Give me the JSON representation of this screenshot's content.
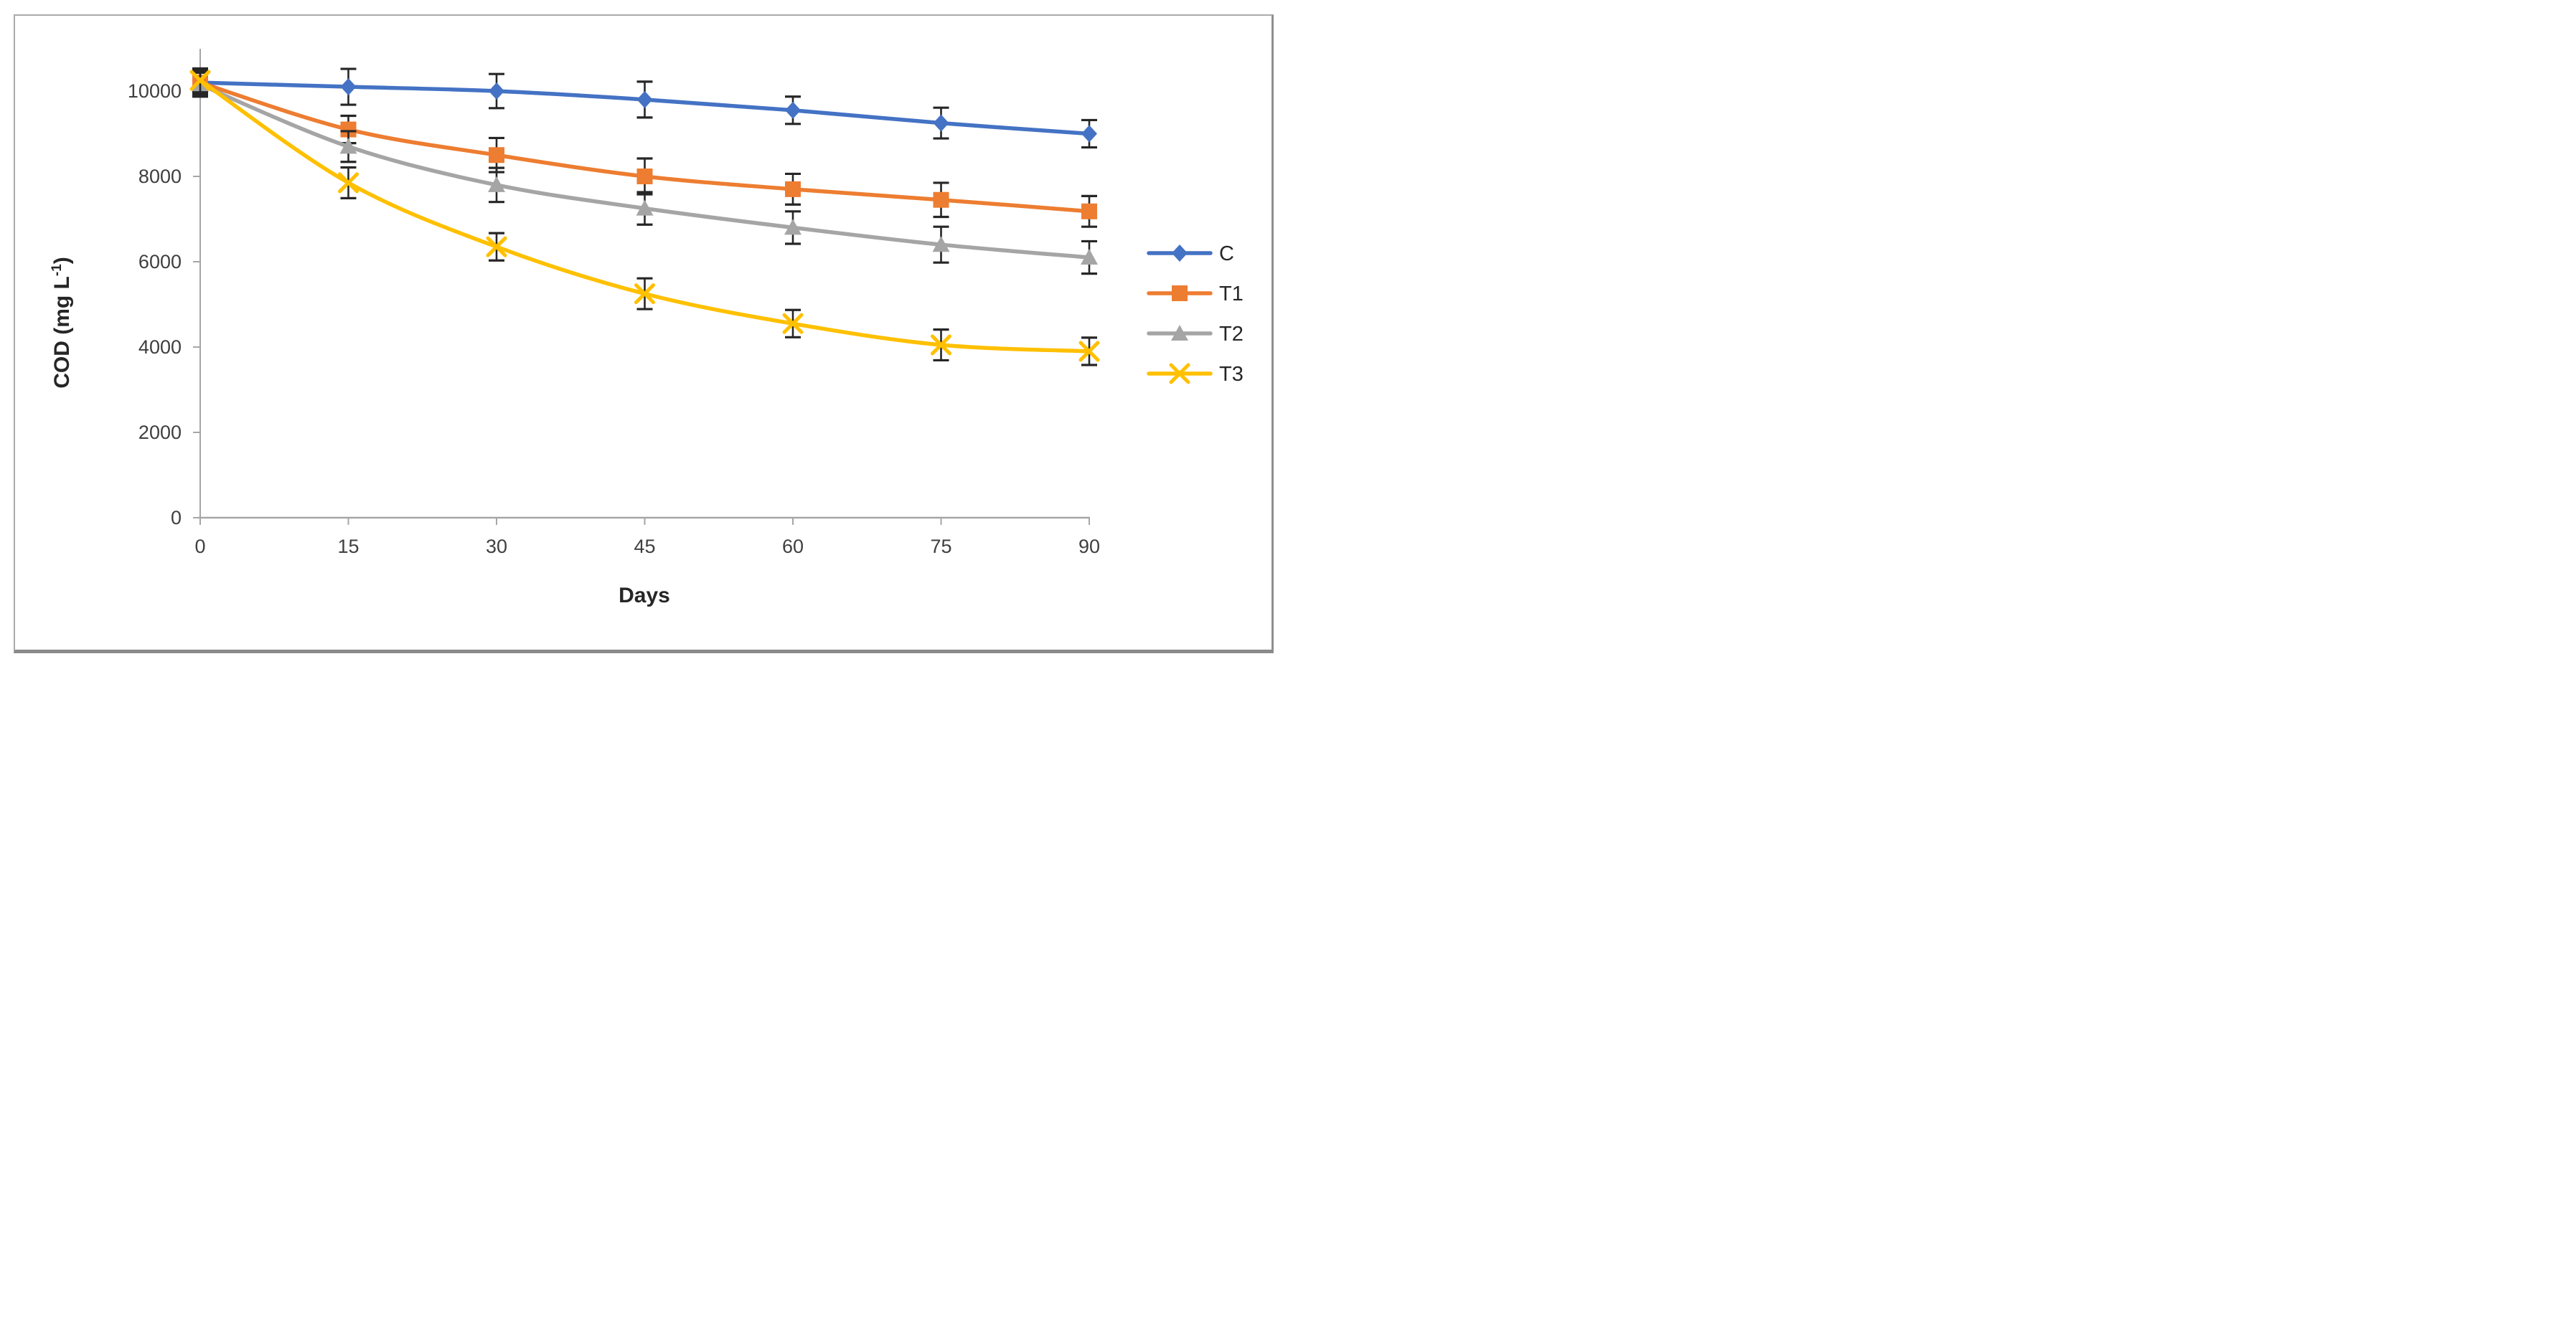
{
  "figure": {
    "background": "#ffffff",
    "border_color": "#aaaaaa",
    "shadow_color": "#8a8a8a"
  },
  "chart_data": {
    "type": "line",
    "title": "",
    "xlabel": "Days",
    "ylabel": "COD (mg L-1)",
    "ylabel_parts": {
      "prefix": "COD (mg L",
      "superscript": "-1",
      "suffix": ")"
    },
    "x": [
      0,
      15,
      30,
      45,
      60,
      75,
      90
    ],
    "x_tick_labels": [
      "0",
      "15",
      "30",
      "45",
      "60",
      "75",
      "90"
    ],
    "y_ticks": [
      0,
      2000,
      4000,
      6000,
      8000,
      10000
    ],
    "y_tick_labels": [
      "0",
      "2000",
      "4000",
      "6000",
      "8000",
      "10000"
    ],
    "ylim": [
      0,
      11000
    ],
    "xlim": [
      0,
      90
    ],
    "grid": false,
    "smooth_lines": true,
    "legend_position": "right",
    "axis_color": "#a6a6a6",
    "tick_text_color": "#3f3f3f",
    "title_text_color": "#262626",
    "error_bar_color": "#262626",
    "series": [
      {
        "name": "C",
        "color": "#4472C4",
        "marker": "diamond",
        "values": [
          10200,
          10100,
          10000,
          9800,
          9550,
          9250,
          9000
        ],
        "errors": [
          280,
          420,
          400,
          420,
          320,
          360,
          320
        ]
      },
      {
        "name": "T1",
        "color": "#ED7D31",
        "marker": "square",
        "values": [
          10200,
          9100,
          8500,
          8000,
          7700,
          7450,
          7180
        ],
        "errors": [
          280,
          320,
          400,
          420,
          360,
          400,
          360
        ]
      },
      {
        "name": "T2",
        "color": "#A5A5A5",
        "marker": "triangle",
        "values": [
          10150,
          8700,
          7800,
          7250,
          6800,
          6400,
          6100
        ],
        "errors": [
          280,
          360,
          400,
          380,
          380,
          420,
          380
        ]
      },
      {
        "name": "T3",
        "color": "#FFC000",
        "marker": "x",
        "values": [
          10250,
          7850,
          6350,
          5250,
          4550,
          4050,
          3900
        ],
        "errors": [
          280,
          360,
          320,
          360,
          320,
          360,
          320
        ]
      }
    ]
  }
}
